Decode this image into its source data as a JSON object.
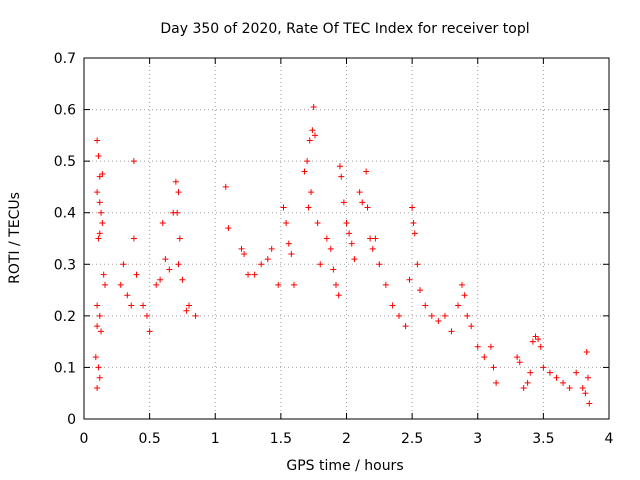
{
  "chart_data": {
    "type": "scatter",
    "title": "Day 350 of 2020, Rate Of TEC Index for receiver topl",
    "xlabel": "GPS time / hours",
    "ylabel": "ROTI / TECUs",
    "xlim": [
      0,
      4
    ],
    "ylim": [
      0,
      0.7
    ],
    "xticks": [
      0,
      0.5,
      1,
      1.5,
      2,
      2.5,
      3,
      3.5,
      4
    ],
    "xtick_labels": [
      "0",
      "0.5",
      "1",
      "1.5",
      "2",
      "2.5",
      "3",
      "3.5",
      "4"
    ],
    "yticks": [
      0,
      0.1,
      0.2,
      0.3,
      0.4,
      0.5,
      0.6,
      0.7
    ],
    "ytick_labels": [
      "0",
      "0.1",
      "0.2",
      "0.3",
      "0.4",
      "0.5",
      "0.6",
      "0.7"
    ],
    "grid": true,
    "marker": "plus",
    "color": "#ff0000",
    "series": [
      {
        "name": "ROTI",
        "points": [
          [
            0.1,
            0.54
          ],
          [
            0.11,
            0.51
          ],
          [
            0.12,
            0.47
          ],
          [
            0.14,
            0.475
          ],
          [
            0.1,
            0.44
          ],
          [
            0.12,
            0.42
          ],
          [
            0.13,
            0.4
          ],
          [
            0.14,
            0.38
          ],
          [
            0.12,
            0.36
          ],
          [
            0.11,
            0.35
          ],
          [
            0.15,
            0.28
          ],
          [
            0.16,
            0.26
          ],
          [
            0.1,
            0.22
          ],
          [
            0.12,
            0.2
          ],
          [
            0.1,
            0.18
          ],
          [
            0.13,
            0.17
          ],
          [
            0.09,
            0.12
          ],
          [
            0.11,
            0.1
          ],
          [
            0.12,
            0.08
          ],
          [
            0.1,
            0.06
          ],
          [
            0.38,
            0.5
          ],
          [
            0.38,
            0.35
          ],
          [
            0.3,
            0.3
          ],
          [
            0.28,
            0.26
          ],
          [
            0.33,
            0.24
          ],
          [
            0.36,
            0.22
          ],
          [
            0.4,
            0.28
          ],
          [
            0.45,
            0.22
          ],
          [
            0.48,
            0.2
          ],
          [
            0.5,
            0.17
          ],
          [
            0.55,
            0.26
          ],
          [
            0.58,
            0.27
          ],
          [
            0.6,
            0.38
          ],
          [
            0.62,
            0.31
          ],
          [
            0.65,
            0.29
          ],
          [
            0.7,
            0.46
          ],
          [
            0.72,
            0.44
          ],
          [
            0.68,
            0.4
          ],
          [
            0.71,
            0.4
          ],
          [
            0.73,
            0.35
          ],
          [
            0.72,
            0.3
          ],
          [
            0.75,
            0.27
          ],
          [
            0.78,
            0.21
          ],
          [
            0.8,
            0.22
          ],
          [
            0.85,
            0.2
          ],
          [
            1.08,
            0.45
          ],
          [
            1.1,
            0.37
          ],
          [
            1.2,
            0.33
          ],
          [
            1.22,
            0.32
          ],
          [
            1.25,
            0.28
          ],
          [
            1.3,
            0.28
          ],
          [
            1.35,
            0.3
          ],
          [
            1.4,
            0.31
          ],
          [
            1.43,
            0.33
          ],
          [
            1.48,
            0.26
          ],
          [
            1.52,
            0.41
          ],
          [
            1.54,
            0.38
          ],
          [
            1.56,
            0.34
          ],
          [
            1.58,
            0.32
          ],
          [
            1.6,
            0.26
          ],
          [
            1.68,
            0.48
          ],
          [
            1.7,
            0.5
          ],
          [
            1.72,
            0.54
          ],
          [
            1.74,
            0.56
          ],
          [
            1.75,
            0.605
          ],
          [
            1.76,
            0.55
          ],
          [
            1.73,
            0.44
          ],
          [
            1.71,
            0.41
          ],
          [
            1.78,
            0.38
          ],
          [
            1.8,
            0.3
          ],
          [
            1.85,
            0.35
          ],
          [
            1.88,
            0.33
          ],
          [
            1.9,
            0.29
          ],
          [
            1.92,
            0.26
          ],
          [
            1.94,
            0.24
          ],
          [
            1.95,
            0.49
          ],
          [
            1.96,
            0.47
          ],
          [
            1.98,
            0.42
          ],
          [
            2.0,
            0.38
          ],
          [
            2.02,
            0.36
          ],
          [
            2.04,
            0.34
          ],
          [
            2.06,
            0.31
          ],
          [
            2.1,
            0.44
          ],
          [
            2.12,
            0.42
          ],
          [
            2.15,
            0.48
          ],
          [
            2.16,
            0.41
          ],
          [
            2.18,
            0.35
          ],
          [
            2.2,
            0.33
          ],
          [
            2.22,
            0.35
          ],
          [
            2.25,
            0.3
          ],
          [
            2.3,
            0.26
          ],
          [
            2.35,
            0.22
          ],
          [
            2.4,
            0.2
          ],
          [
            2.45,
            0.18
          ],
          [
            2.48,
            0.27
          ],
          [
            2.5,
            0.41
          ],
          [
            2.51,
            0.38
          ],
          [
            2.52,
            0.36
          ],
          [
            2.54,
            0.3
          ],
          [
            2.56,
            0.25
          ],
          [
            2.6,
            0.22
          ],
          [
            2.65,
            0.2
          ],
          [
            2.7,
            0.19
          ],
          [
            2.75,
            0.2
          ],
          [
            2.8,
            0.17
          ],
          [
            2.85,
            0.22
          ],
          [
            2.88,
            0.26
          ],
          [
            2.9,
            0.24
          ],
          [
            2.92,
            0.2
          ],
          [
            2.95,
            0.18
          ],
          [
            3.0,
            0.14
          ],
          [
            3.05,
            0.12
          ],
          [
            3.1,
            0.14
          ],
          [
            3.12,
            0.1
          ],
          [
            3.14,
            0.07
          ],
          [
            3.3,
            0.12
          ],
          [
            3.32,
            0.11
          ],
          [
            3.35,
            0.06
          ],
          [
            3.38,
            0.07
          ],
          [
            3.4,
            0.09
          ],
          [
            3.42,
            0.15
          ],
          [
            3.44,
            0.16
          ],
          [
            3.46,
            0.155
          ],
          [
            3.48,
            0.14
          ],
          [
            3.5,
            0.1
          ],
          [
            3.55,
            0.09
          ],
          [
            3.6,
            0.08
          ],
          [
            3.65,
            0.07
          ],
          [
            3.7,
            0.06
          ],
          [
            3.75,
            0.09
          ],
          [
            3.8,
            0.06
          ],
          [
            3.82,
            0.05
          ],
          [
            3.83,
            0.13
          ],
          [
            3.84,
            0.08
          ],
          [
            3.85,
            0.03
          ]
        ]
      }
    ]
  }
}
